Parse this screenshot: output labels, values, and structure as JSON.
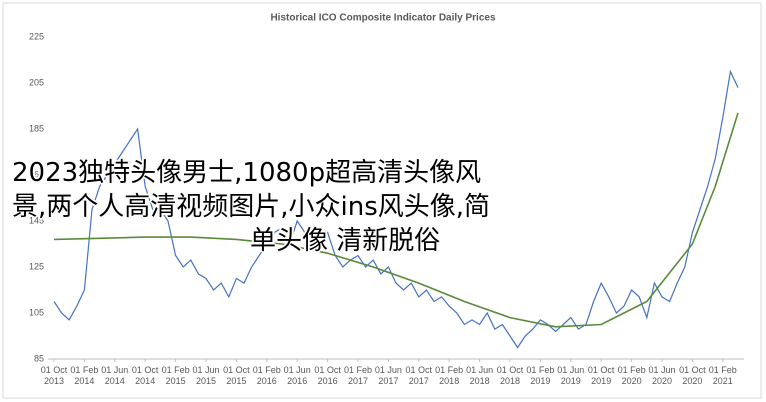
{
  "chart_data": {
    "type": "line",
    "title": "Historical ICO Composite Indicator Daily Prices",
    "xlim": [
      "2013-10",
      "2021-04"
    ],
    "xticks": [
      {
        "value": "2013-10",
        "label": "01 Oct 2013"
      },
      {
        "value": "2014-02",
        "label": "01 Feb 2014"
      },
      {
        "value": "2014-06",
        "label": "01 Jun 2014"
      },
      {
        "value": "2014-10",
        "label": "01 Oct 2014"
      },
      {
        "value": "2015-02",
        "label": "01 Feb 2015"
      },
      {
        "value": "2015-06",
        "label": "01 Jun 2015"
      },
      {
        "value": "2015-10",
        "label": "01 Oct 2015"
      },
      {
        "value": "2016-02",
        "label": "01 Feb 2016"
      },
      {
        "value": "2016-06",
        "label": "01 Jun 2016"
      },
      {
        "value": "2016-10",
        "label": "01 Oct 2016"
      },
      {
        "value": "2017-02",
        "label": "01 Feb 2017"
      },
      {
        "value": "2017-06",
        "label": "01 Jun 2017"
      },
      {
        "value": "2017-10",
        "label": "01 Oct 2017"
      },
      {
        "value": "2018-02",
        "label": "01 Feb 2018"
      },
      {
        "value": "2018-06",
        "label": "01 Jun 2018"
      },
      {
        "value": "2018-10",
        "label": "01 Oct 2018"
      },
      {
        "value": "2019-02",
        "label": "01 Feb 2019"
      },
      {
        "value": "2019-06",
        "label": "01 Jun 2019"
      },
      {
        "value": "2019-10",
        "label": "01 Oct 2019"
      },
      {
        "value": "2020-02",
        "label": "01 Feb 2020"
      },
      {
        "value": "2020-06",
        "label": "01 Jun 2020"
      },
      {
        "value": "2020-10",
        "label": "01 Oct 2020"
      },
      {
        "value": "2021-02",
        "label": "01 Feb 2021"
      }
    ],
    "ylim": [
      85,
      225
    ],
    "yticks": [
      85,
      105,
      125,
      145,
      165,
      185,
      205,
      225
    ],
    "grid": false,
    "series": [
      {
        "color": "#4472c4",
        "x": [
          "2013-10",
          "2013-11",
          "2013-12",
          "2014-01",
          "2014-02",
          "2014-03",
          "2014-04",
          "2014-05",
          "2014-06",
          "2014-07",
          "2014-08",
          "2014-09",
          "2014-10",
          "2014-11",
          "2014-12",
          "2015-01",
          "2015-02",
          "2015-03",
          "2015-04",
          "2015-05",
          "2015-06",
          "2015-07",
          "2015-08",
          "2015-09",
          "2015-10",
          "2015-11",
          "2015-12",
          "2016-01",
          "2016-02",
          "2016-03",
          "2016-04",
          "2016-05",
          "2016-06",
          "2016-07",
          "2016-08",
          "2016-09",
          "2016-10",
          "2016-11",
          "2016-12",
          "2017-01",
          "2017-02",
          "2017-03",
          "2017-04",
          "2017-05",
          "2017-06",
          "2017-07",
          "2017-08",
          "2017-09",
          "2017-10",
          "2017-11",
          "2017-12",
          "2018-01",
          "2018-02",
          "2018-03",
          "2018-04",
          "2018-05",
          "2018-06",
          "2018-07",
          "2018-08",
          "2018-09",
          "2018-10",
          "2018-11",
          "2018-12",
          "2019-01",
          "2019-02",
          "2019-03",
          "2019-04",
          "2019-05",
          "2019-06",
          "2019-07",
          "2019-08",
          "2019-09",
          "2019-10",
          "2019-11",
          "2019-12",
          "2020-01",
          "2020-02",
          "2020-03",
          "2020-04",
          "2020-05",
          "2020-06",
          "2020-07",
          "2020-08",
          "2020-09",
          "2020-10",
          "2020-11",
          "2020-12",
          "2021-01",
          "2021-02",
          "2021-03",
          "2021-04"
        ],
        "values": [
          110,
          105,
          102,
          108,
          115,
          150,
          160,
          165,
          170,
          175,
          180,
          185,
          160,
          150,
          150,
          145,
          130,
          125,
          128,
          122,
          120,
          115,
          118,
          112,
          120,
          118,
          125,
          130,
          135,
          140,
          142,
          135,
          145,
          140,
          140,
          138,
          140,
          130,
          125,
          128,
          130,
          125,
          128,
          122,
          125,
          118,
          115,
          118,
          112,
          115,
          110,
          112,
          108,
          105,
          100,
          102,
          100,
          105,
          98,
          100,
          95,
          90,
          95,
          98,
          102,
          100,
          97,
          100,
          103,
          98,
          100,
          110,
          118,
          112,
          105,
          108,
          115,
          112,
          103,
          118,
          112,
          110,
          118,
          125,
          140,
          150,
          160,
          172,
          190,
          210,
          203
        ]
      },
      {
        "color": "#5a8a3c",
        "x": [
          "2013-10",
          "2014-04",
          "2014-10",
          "2015-04",
          "2015-10",
          "2016-04",
          "2016-10",
          "2017-04",
          "2017-10",
          "2018-04",
          "2018-10",
          "2019-04",
          "2019-10",
          "2020-04",
          "2020-10",
          "2021-01",
          "2021-04"
        ],
        "values": [
          137,
          137.5,
          138,
          138,
          137,
          135,
          131,
          125,
          118,
          110,
          103,
          99,
          100,
          110,
          135,
          160,
          192
        ]
      }
    ]
  },
  "overlay": {
    "lines": [
      "2023独特头像男士,1080p超高清头像风",
      "景,两个人高清视频图片,小众ins风头像,简",
      "单头像 清新脱俗"
    ]
  }
}
